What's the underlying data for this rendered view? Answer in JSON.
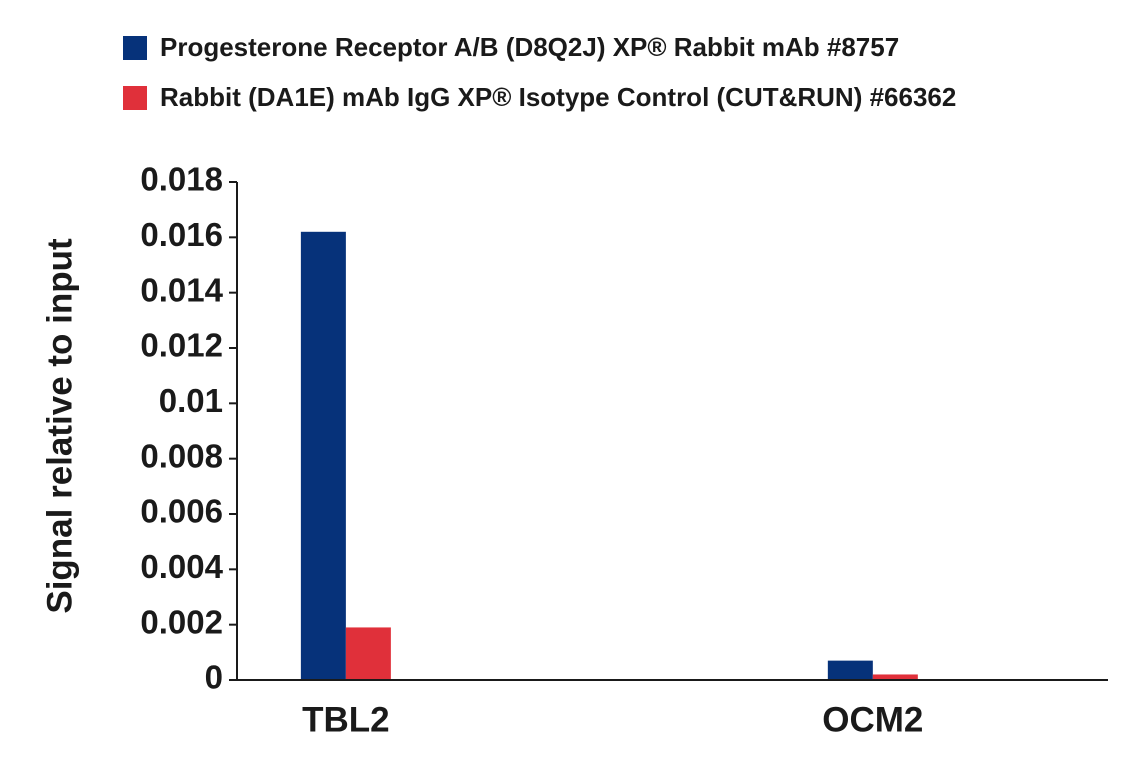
{
  "chart_data": {
    "type": "bar",
    "y_label": "Signal relative to input",
    "categories": [
      "TBL2",
      "OCM2"
    ],
    "series": [
      {
        "name": "Progesterone Receptor A/B (D8Q2J) XP® Rabbit mAb #8757",
        "color": "#06327a",
        "values": [
          0.0162,
          0.0007
        ]
      },
      {
        "name": "Rabbit (DA1E) mAb IgG XP® Isotype Control (CUT&RUN) #66362",
        "color": "#e0303a",
        "values": [
          0.0019,
          0.0002
        ]
      }
    ],
    "ylim": [
      0,
      0.018
    ],
    "yticks": [
      0,
      0.002,
      0.004,
      0.006,
      0.008,
      0.01,
      0.012,
      0.014,
      0.016,
      0.018
    ]
  }
}
